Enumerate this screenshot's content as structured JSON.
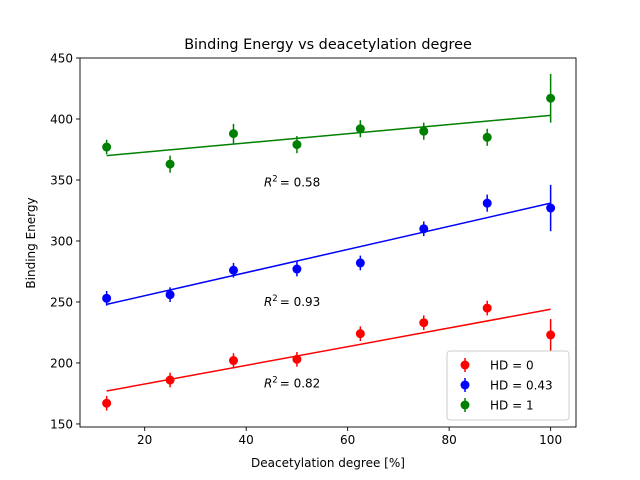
{
  "chart_data": {
    "type": "scatter",
    "title": "Binding Energy vs deacetylation degree",
    "xlabel": "Deacetylation degree [%]",
    "ylabel": "Binding Energy",
    "xlim": [
      7.25,
      105
    ],
    "ylim": [
      147.5,
      450
    ],
    "xticks": [
      20,
      40,
      60,
      80,
      100
    ],
    "yticks": [
      150,
      200,
      250,
      300,
      350,
      400,
      450
    ],
    "grid": false,
    "legend_position": "lower-right",
    "x": [
      12.5,
      25,
      37.5,
      50,
      62.5,
      75,
      87.5,
      100
    ],
    "series": [
      {
        "name": "HD = 0",
        "color": "#ff0000",
        "values": [
          167,
          186,
          202,
          203,
          224,
          233,
          245,
          223
        ],
        "errors": [
          6,
          6,
          6,
          6,
          6,
          6,
          6,
          13
        ],
        "fit": {
          "start": 177,
          "end": 244
        },
        "r2_label": "= 0.82"
      },
      {
        "name": "HD = 0.43",
        "color": "#0000ff",
        "values": [
          253,
          256,
          276,
          277,
          282,
          310,
          331,
          327
        ],
        "errors": [
          6,
          6,
          6,
          6,
          6,
          6,
          7,
          19
        ],
        "fit": {
          "start": 248,
          "end": 331
        },
        "r2_label": "= 0.93"
      },
      {
        "name": "HD = 1",
        "color": "#008000",
        "values": [
          377,
          363,
          388,
          379,
          392,
          390,
          385,
          417
        ],
        "errors": [
          6,
          7,
          8,
          7,
          7,
          7,
          7,
          20
        ],
        "fit": {
          "start": 370,
          "end": 403
        },
        "r2_label": "= 0.58"
      }
    ],
    "annotations_note_symbol": "R",
    "annotations_note_sup": "2"
  }
}
